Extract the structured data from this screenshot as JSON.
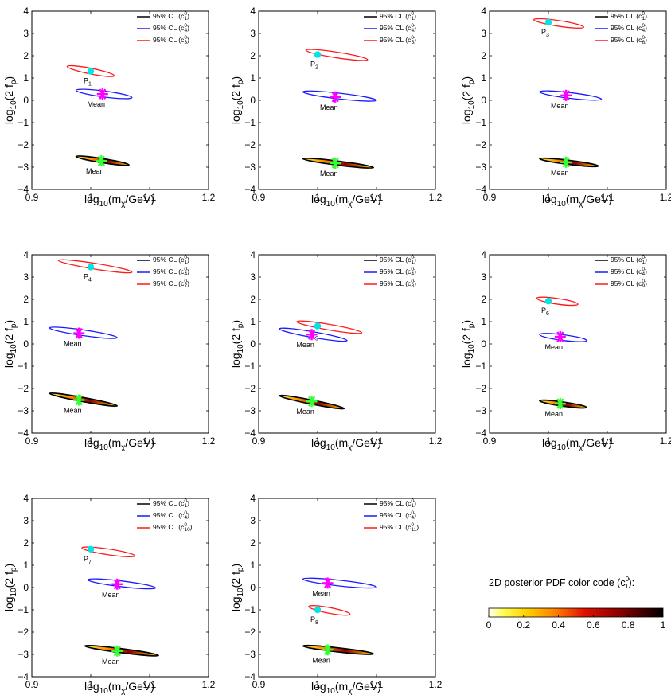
{
  "colors": {
    "black": "#000000",
    "blue": "#1a1aff",
    "red": "#ff1a1a",
    "cyan": "#00e5e5",
    "magenta": "#ff00ff",
    "green": "#33ff33"
  },
  "colorbar": {
    "title": "2D posterior PDF color code (c",
    "title_sup": "0",
    "title_sub": "1",
    "title_end": "):",
    "ticks": [
      "0",
      "0.2",
      "0.4",
      "0.6",
      "0.8",
      "1"
    ],
    "stops": [
      "#ffffff",
      "#ffff30",
      "#ffc000",
      "#ff6000",
      "#cc0000",
      "#7a0000",
      "#000000"
    ]
  },
  "chart_data": [
    {
      "type": "scatter",
      "panel": 1,
      "title": "",
      "xlabel": "log10(mχ/GeV)",
      "ylabel": "log10(2 fp)",
      "xlim": [
        0.9,
        1.2
      ],
      "ylim": [
        -4,
        4
      ],
      "xticks": [
        "0.9",
        "1",
        "1.1",
        "1.2"
      ],
      "yticks": [
        "−4",
        "−3",
        "−2",
        "−1",
        "0",
        "1",
        "2",
        "3",
        "4"
      ],
      "legend": [
        {
          "text": "95% CL (c",
          "sup": "0",
          "sub": "1",
          "color": "black"
        },
        {
          "text": "95% CL (c",
          "sup": "0",
          "sub": "4",
          "color": "blue"
        },
        {
          "text": "95% CL (c",
          "sup": "0",
          "sub": "3",
          "color": "red"
        }
      ],
      "ellipses": [
        {
          "color": "black",
          "filled": true,
          "x1": 0.975,
          "y1": -2.52,
          "x2": 1.065,
          "y2": -2.9,
          "width": 0.1
        },
        {
          "color": "blue",
          "filled": false,
          "x1": 0.975,
          "y1": 0.45,
          "x2": 1.07,
          "y2": 0.12,
          "width": 0.18
        },
        {
          "color": "red",
          "filled": false,
          "x1": 0.96,
          "y1": 1.52,
          "x2": 1.04,
          "y2": 1.1,
          "width": 0.17
        }
      ],
      "true_point": {
        "label": "P",
        "sub": "1",
        "x": 1.0,
        "y": 1.3
      },
      "means": [
        {
          "label": "Mean",
          "x": 1.02,
          "y": 0.28,
          "color": "magenta"
        },
        {
          "label": "Mean",
          "x": 1.018,
          "y": -2.72,
          "color": "green"
        }
      ]
    },
    {
      "type": "scatter",
      "panel": 2,
      "title": "",
      "xlabel": "log10(mχ/GeV)",
      "ylabel": "log10(2 fp)",
      "xlim": [
        0.9,
        1.2
      ],
      "ylim": [
        -4,
        4
      ],
      "xticks": [
        "0.9",
        "1",
        "1.1",
        "1.2"
      ],
      "yticks": [
        "−4",
        "−3",
        "−2",
        "−1",
        "0",
        "1",
        "2",
        "3",
        "4"
      ],
      "legend": [
        {
          "text": "95% CL (c",
          "sup": "0",
          "sub": "1",
          "color": "black"
        },
        {
          "text": "95% CL (c",
          "sup": "0",
          "sub": "4",
          "color": "blue"
        },
        {
          "text": "95% CL (c",
          "sup": "0",
          "sub": "5",
          "color": "red"
        }
      ],
      "ellipses": [
        {
          "color": "black",
          "filled": true,
          "x1": 0.975,
          "y1": -2.62,
          "x2": 1.095,
          "y2": -3.02,
          "width": 0.1
        },
        {
          "color": "blue",
          "filled": false,
          "x1": 0.975,
          "y1": 0.38,
          "x2": 1.1,
          "y2": 0.0,
          "width": 0.17
        },
        {
          "color": "red",
          "filled": false,
          "x1": 0.98,
          "y1": 2.25,
          "x2": 1.085,
          "y2": 1.82,
          "width": 0.17
        }
      ],
      "true_point": {
        "label": "P",
        "sub": "2",
        "x": 1.0,
        "y": 2.05
      },
      "means": [
        {
          "label": "Mean",
          "x": 1.03,
          "y": 0.15,
          "color": "magenta"
        },
        {
          "label": "Mean",
          "x": 1.03,
          "y": -2.82,
          "color": "green"
        }
      ]
    },
    {
      "type": "scatter",
      "panel": 3,
      "title": "",
      "xlabel": "log10(mχ/GeV)",
      "ylabel": "log10(2 fp)",
      "xlim": [
        0.9,
        1.2
      ],
      "ylim": [
        -4,
        4
      ],
      "xticks": [
        "0.9",
        "1",
        "1.1",
        "1.2"
      ],
      "yticks": [
        "−4",
        "−3",
        "−2",
        "−1",
        "0",
        "1",
        "2",
        "3",
        "4"
      ],
      "legend": [
        {
          "text": "95% CL (c",
          "sup": "0",
          "sub": "1",
          "color": "black"
        },
        {
          "text": "95% CL (c",
          "sup": "0",
          "sub": "4",
          "color": "blue"
        },
        {
          "text": "95% CL (c",
          "sup": "0",
          "sub": "6",
          "color": "red"
        }
      ],
      "ellipses": [
        {
          "color": "black",
          "filled": true,
          "x1": 0.985,
          "y1": -2.62,
          "x2": 1.085,
          "y2": -2.95,
          "width": 0.1
        },
        {
          "color": "blue",
          "filled": false,
          "x1": 0.985,
          "y1": 0.38,
          "x2": 1.09,
          "y2": 0.05,
          "width": 0.17
        },
        {
          "color": "red",
          "filled": false,
          "x1": 0.975,
          "y1": 3.62,
          "x2": 1.06,
          "y2": 3.28,
          "width": 0.17
        }
      ],
      "true_point": {
        "label": "P",
        "sub": "3",
        "x": 1.0,
        "y": 3.5
      },
      "means": [
        {
          "label": "Mean",
          "x": 1.03,
          "y": 0.22,
          "color": "magenta"
        },
        {
          "label": "Mean",
          "x": 1.03,
          "y": -2.78,
          "color": "green"
        }
      ]
    },
    {
      "type": "scatter",
      "panel": 4,
      "title": "",
      "xlabel": "log10(mχ/GeV)",
      "ylabel": "log10(2 fp)",
      "xlim": [
        0.9,
        1.2
      ],
      "ylim": [
        -4,
        4
      ],
      "xticks": [
        "0.9",
        "1",
        "1.1",
        "1.2"
      ],
      "yticks": [
        "−4",
        "−3",
        "−2",
        "−1",
        "0",
        "1",
        "2",
        "3",
        "4"
      ],
      "legend": [
        {
          "text": "95% CL (c",
          "sup": "0",
          "sub": "1",
          "color": "black"
        },
        {
          "text": "95% CL (c",
          "sup": "0",
          "sub": "4",
          "color": "blue"
        },
        {
          "text": "95% CL (c",
          "sup": "0",
          "sub": "7",
          "color": "red"
        }
      ],
      "ellipses": [
        {
          "color": "black",
          "filled": true,
          "x1": 0.93,
          "y1": -2.22,
          "x2": 1.045,
          "y2": -2.78,
          "width": 0.1
        },
        {
          "color": "blue",
          "filled": false,
          "x1": 0.93,
          "y1": 0.72,
          "x2": 1.045,
          "y2": 0.28,
          "width": 0.17
        },
        {
          "color": "red",
          "filled": false,
          "x1": 0.945,
          "y1": 3.75,
          "x2": 1.07,
          "y2": 3.22,
          "width": 0.17
        }
      ],
      "true_point": {
        "label": "P",
        "sub": "4",
        "x": 1.0,
        "y": 3.45
      },
      "means": [
        {
          "label": "Mean",
          "x": 0.98,
          "y": 0.48,
          "color": "magenta"
        },
        {
          "label": "Mean",
          "x": 0.98,
          "y": -2.52,
          "color": "green"
        }
      ]
    },
    {
      "type": "scatter",
      "panel": 5,
      "title": "",
      "xlabel": "log10(mχ/GeV)",
      "ylabel": "log10(2 fp)",
      "xlim": [
        0.9,
        1.2
      ],
      "ylim": [
        -4,
        4
      ],
      "xticks": [
        "0.9",
        "1",
        "1.1",
        "1.2"
      ],
      "yticks": [
        "−4",
        "−3",
        "−2",
        "−1",
        "0",
        "1",
        "2",
        "3",
        "4"
      ],
      "legend": [
        {
          "text": "95% CL (c",
          "sup": "0",
          "sub": "1",
          "color": "black"
        },
        {
          "text": "95% CL (c",
          "sup": "0",
          "sub": "4",
          "color": "blue"
        },
        {
          "text": "95% CL (c",
          "sup": "0",
          "sub": "8",
          "color": "red"
        }
      ],
      "ellipses": [
        {
          "color": "black",
          "filled": true,
          "x1": 0.935,
          "y1": -2.32,
          "x2": 1.045,
          "y2": -2.9,
          "width": 0.1
        },
        {
          "color": "blue",
          "filled": false,
          "x1": 0.935,
          "y1": 0.68,
          "x2": 1.05,
          "y2": 0.15,
          "width": 0.17
        },
        {
          "color": "red",
          "filled": false,
          "x1": 0.965,
          "y1": 1.0,
          "x2": 1.075,
          "y2": 0.5,
          "width": 0.17
        }
      ],
      "true_point": {
        "label": "P",
        "sub": "5",
        "x": 1.0,
        "y": 0.8
      },
      "means": [
        {
          "label": "Mean",
          "x": 0.99,
          "y": 0.42,
          "color": "magenta"
        },
        {
          "label": "Mean",
          "x": 0.99,
          "y": -2.58,
          "color": "green"
        }
      ]
    },
    {
      "type": "scatter",
      "panel": 6,
      "title": "",
      "xlabel": "log10(mχ/GeV)",
      "ylabel": "log10(2 fp)",
      "xlim": [
        0.9,
        1.2
      ],
      "ylim": [
        -4,
        4
      ],
      "xticks": [
        "0.9",
        "1",
        "1.1",
        "1.2"
      ],
      "yticks": [
        "−4",
        "−3",
        "−2",
        "−1",
        "0",
        "1",
        "2",
        "3",
        "4"
      ],
      "legend": [
        {
          "text": "95% CL (c",
          "sup": "0",
          "sub": "1",
          "color": "black"
        },
        {
          "text": "95% CL (c",
          "sup": "0",
          "sub": "4",
          "color": "blue"
        },
        {
          "text": "95% CL (c",
          "sup": "0",
          "sub": "9",
          "color": "red"
        }
      ],
      "ellipses": [
        {
          "color": "black",
          "filled": true,
          "x1": 0.985,
          "y1": -2.55,
          "x2": 1.065,
          "y2": -2.85,
          "width": 0.1
        },
        {
          "color": "blue",
          "filled": false,
          "x1": 0.985,
          "y1": 0.42,
          "x2": 1.065,
          "y2": 0.15,
          "width": 0.17
        },
        {
          "color": "red",
          "filled": false,
          "x1": 0.98,
          "y1": 2.05,
          "x2": 1.05,
          "y2": 1.78,
          "width": 0.17
        }
      ],
      "true_point": {
        "label": "P",
        "sub": "6",
        "x": 1.0,
        "y": 1.92
      },
      "means": [
        {
          "label": "Mean",
          "x": 1.02,
          "y": 0.32,
          "color": "magenta"
        },
        {
          "label": "Mean",
          "x": 1.02,
          "y": -2.68,
          "color": "green"
        }
      ]
    },
    {
      "type": "scatter",
      "panel": 7,
      "title": "",
      "xlabel": "log10(mχ/GeV)",
      "ylabel": "log10(2 fp)",
      "xlim": [
        0.9,
        1.2
      ],
      "ylim": [
        -4,
        4
      ],
      "xticks": [
        "0.9",
        "1",
        "1.1",
        "1.2"
      ],
      "yticks": [
        "−4",
        "−3",
        "−2",
        "−1",
        "0",
        "1",
        "2",
        "3",
        "4"
      ],
      "legend": [
        {
          "text": "95% CL (c",
          "sup": "0",
          "sub": "1",
          "color": "black"
        },
        {
          "text": "95% CL (c",
          "sup": "0",
          "sub": "4",
          "color": "blue"
        },
        {
          "text": "95% CL (c",
          "sup": "0",
          "sub": "10",
          "color": "red"
        }
      ],
      "ellipses": [
        {
          "color": "black",
          "filled": true,
          "x1": 0.99,
          "y1": -2.62,
          "x2": 1.115,
          "y2": -3.05,
          "width": 0.1
        },
        {
          "color": "blue",
          "filled": false,
          "x1": 0.995,
          "y1": 0.35,
          "x2": 1.11,
          "y2": -0.02,
          "width": 0.17
        },
        {
          "color": "red",
          "filled": false,
          "x1": 0.985,
          "y1": 1.78,
          "x2": 1.075,
          "y2": 1.42,
          "width": 0.17
        }
      ],
      "true_point": {
        "label": "P",
        "sub": "7",
        "x": 1.0,
        "y": 1.72
      },
      "means": [
        {
          "label": "Mean",
          "x": 1.045,
          "y": 0.15,
          "color": "magenta"
        },
        {
          "label": "Mean",
          "x": 1.045,
          "y": -2.85,
          "color": "green"
        }
      ]
    },
    {
      "type": "scatter",
      "panel": 8,
      "title": "",
      "xlabel": "log10(mχ/GeV)",
      "ylabel": "log10(2 fp)",
      "xlim": [
        0.9,
        1.2
      ],
      "ylim": [
        -4,
        4
      ],
      "xticks": [
        "0.9",
        "1",
        "1.1",
        "1.2"
      ],
      "yticks": [
        "−4",
        "−3",
        "−2",
        "−1",
        "0",
        "1",
        "2",
        "3",
        "4"
      ],
      "legend": [
        {
          "text": "95% CL (c",
          "sup": "0",
          "sub": "1",
          "color": "black"
        },
        {
          "text": "95% CL (c",
          "sup": "0",
          "sub": "4",
          "color": "blue"
        },
        {
          "text": "95% CL (c",
          "sup": "0",
          "sub": "11",
          "color": "red"
        }
      ],
      "ellipses": [
        {
          "color": "black",
          "filled": true,
          "x1": 0.975,
          "y1": -2.62,
          "x2": 1.095,
          "y2": -2.98,
          "width": 0.1
        },
        {
          "color": "blue",
          "filled": false,
          "x1": 0.975,
          "y1": 0.38,
          "x2": 1.1,
          "y2": 0.02,
          "width": 0.17
        },
        {
          "color": "red",
          "filled": false,
          "x1": 0.985,
          "y1": -0.85,
          "x2": 1.055,
          "y2": -1.2,
          "width": 0.17
        }
      ],
      "true_point": {
        "label": "P",
        "sub": "8",
        "x": 1.0,
        "y": -1.0
      },
      "means": [
        {
          "label": "Mean",
          "x": 1.017,
          "y": 0.2,
          "color": "magenta"
        },
        {
          "label": "Mean",
          "x": 1.017,
          "y": -2.8,
          "color": "green"
        }
      ]
    }
  ]
}
